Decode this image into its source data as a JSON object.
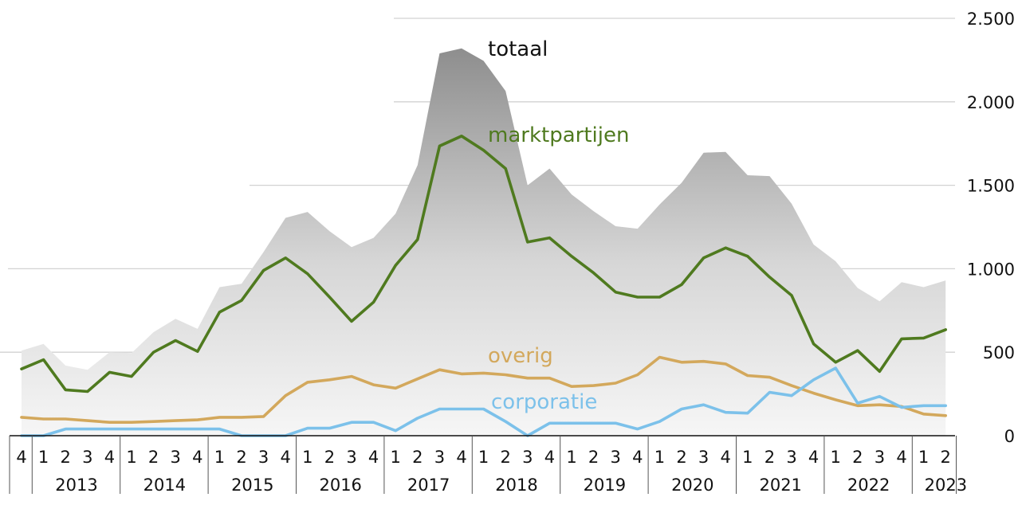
{
  "chart_data": {
    "type": "line",
    "quarters": [
      "4",
      "1",
      "2",
      "3",
      "4",
      "1",
      "2",
      "3",
      "4",
      "1",
      "2",
      "3",
      "4",
      "1",
      "2",
      "3",
      "4",
      "1",
      "2",
      "3",
      "4",
      "1",
      "2",
      "3",
      "4",
      "1",
      "2",
      "3",
      "4",
      "1",
      "2",
      "3",
      "4",
      "1",
      "2",
      "3",
      "4",
      "1",
      "2",
      "3",
      "4",
      "1",
      "2"
    ],
    "years": [
      {
        "label": "2013",
        "start": 1,
        "end": 4
      },
      {
        "label": "2014",
        "start": 5,
        "end": 8
      },
      {
        "label": "2015",
        "start": 9,
        "end": 12
      },
      {
        "label": "2016",
        "start": 13,
        "end": 16
      },
      {
        "label": "2017",
        "start": 17,
        "end": 20
      },
      {
        "label": "2018",
        "start": 21,
        "end": 24
      },
      {
        "label": "2019",
        "start": 25,
        "end": 28
      },
      {
        "label": "2020",
        "start": 29,
        "end": 32
      },
      {
        "label": "2021",
        "start": 33,
        "end": 36
      },
      {
        "label": "2022",
        "start": 37,
        "end": 40
      },
      {
        "label": "2023",
        "start": 41,
        "end": 42
      }
    ],
    "ylim": [
      0,
      2500
    ],
    "yticks": [
      0,
      500,
      1000,
      1500,
      2000,
      2500
    ],
    "ytick_labels": [
      "0",
      "500",
      "1.000",
      "1.500",
      "2.000",
      "2.500"
    ],
    "grid": true,
    "series": [
      {
        "name": "totaal",
        "kind": "area",
        "color": "#8a8a8a",
        "values": [
          510,
          550,
          420,
          395,
          500,
          495,
          620,
          700,
          640,
          890,
          910,
          1100,
          1305,
          1340,
          1225,
          1130,
          1185,
          1330,
          1620,
          2290,
          2320,
          2245,
          2065,
          1500,
          1600,
          1445,
          1345,
          1255,
          1240,
          1385,
          1515,
          1695,
          1700,
          1560,
          1555,
          1390,
          1145,
          1045,
          885,
          805,
          920,
          890,
          930
        ]
      },
      {
        "name": "marktpartijen",
        "kind": "line",
        "color": "#4f7a1f",
        "values": [
          400,
          455,
          275,
          265,
          380,
          355,
          500,
          570,
          505,
          740,
          810,
          990,
          1065,
          970,
          830,
          685,
          800,
          1020,
          1175,
          1735,
          1795,
          1710,
          1600,
          1160,
          1185,
          1075,
          975,
          860,
          830,
          830,
          905,
          1065,
          1125,
          1075,
          950,
          840,
          550,
          440,
          510,
          385,
          580,
          585,
          635
        ]
      },
      {
        "name": "overig",
        "kind": "line",
        "color": "#d3a85c",
        "values": [
          110,
          100,
          100,
          90,
          80,
          80,
          85,
          90,
          95,
          110,
          110,
          115,
          240,
          320,
          335,
          355,
          305,
          285,
          340,
          395,
          370,
          375,
          365,
          345,
          345,
          295,
          300,
          315,
          365,
          470,
          440,
          445,
          430,
          360,
          350,
          300,
          255,
          215,
          180,
          185,
          175,
          130,
          120
        ]
      },
      {
        "name": "corporatie",
        "kind": "line",
        "color": "#7cc1ea",
        "values": [
          0,
          0,
          40,
          40,
          40,
          40,
          40,
          40,
          40,
          40,
          0,
          0,
          0,
          45,
          45,
          80,
          80,
          30,
          105,
          160,
          160,
          160,
          85,
          0,
          75,
          75,
          75,
          75,
          40,
          85,
          160,
          185,
          140,
          135,
          260,
          240,
          335,
          405,
          195,
          235,
          170,
          180,
          180
        ]
      }
    ]
  }
}
